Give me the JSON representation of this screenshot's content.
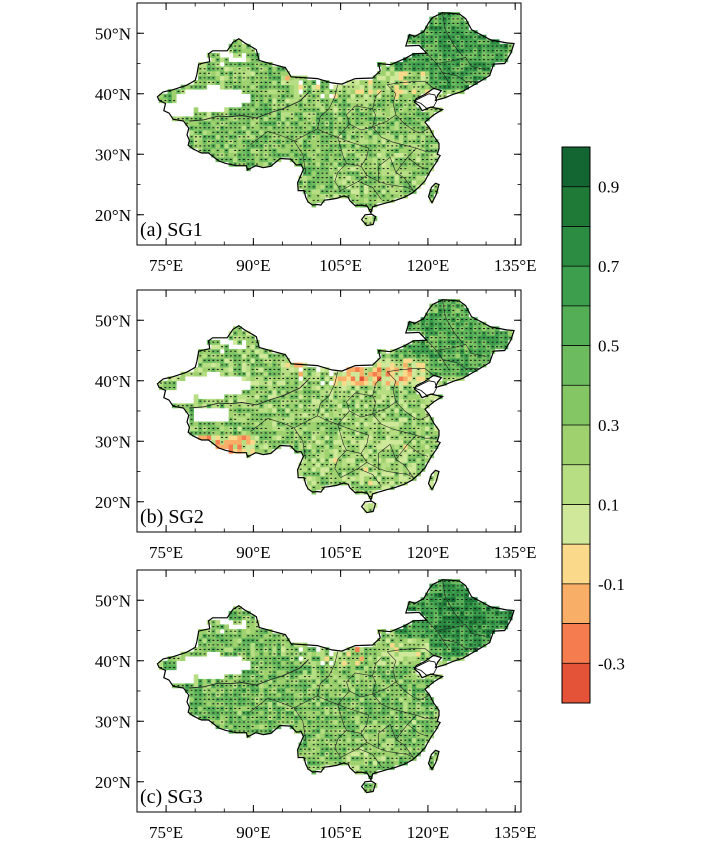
{
  "figure": {
    "panels": [
      {
        "label": "(a) SG1",
        "variant": 0
      },
      {
        "label": "(b) SG2",
        "variant": 1
      },
      {
        "label": "(c) SG3",
        "variant": 2
      }
    ],
    "lon_ticks": [
      {
        "value": 75,
        "label": "75°E"
      },
      {
        "value": 90,
        "label": "90°E"
      },
      {
        "value": 105,
        "label": "105°E"
      },
      {
        "value": 120,
        "label": "120°E"
      },
      {
        "value": 135,
        "label": "135°E"
      }
    ],
    "lat_ticks": [
      {
        "value": 20,
        "label": "20°N"
      },
      {
        "value": 30,
        "label": "30°N"
      },
      {
        "value": 40,
        "label": "40°N"
      },
      {
        "value": 50,
        "label": "50°N"
      }
    ],
    "lon_range": [
      70,
      136
    ],
    "lat_range": [
      15,
      55
    ],
    "colorbar": {
      "min": -0.4,
      "max": 1.0,
      "step": 0.1,
      "colors": [
        "#e45237",
        "#f47c4e",
        "#f9ae68",
        "#fbd98a",
        "#cfe89a",
        "#b7de83",
        "#9fd26f",
        "#84c664",
        "#6cbb5e",
        "#53ae56",
        "#3d9e4d",
        "#2b8c42",
        "#1f7a38",
        "#136631"
      ],
      "labels": [
        "-0.3",
        "-0.1",
        "0.1",
        "0.3",
        "0.5",
        "0.7",
        "0.9"
      ],
      "label_values": [
        -0.3,
        -0.1,
        0.1,
        0.3,
        0.5,
        0.7,
        0.9
      ]
    },
    "map_colors": {
      "border": "#000000",
      "province": "#222222",
      "no_data": "#ffffff",
      "sig_dot": "#1a1a1a"
    }
  }
}
